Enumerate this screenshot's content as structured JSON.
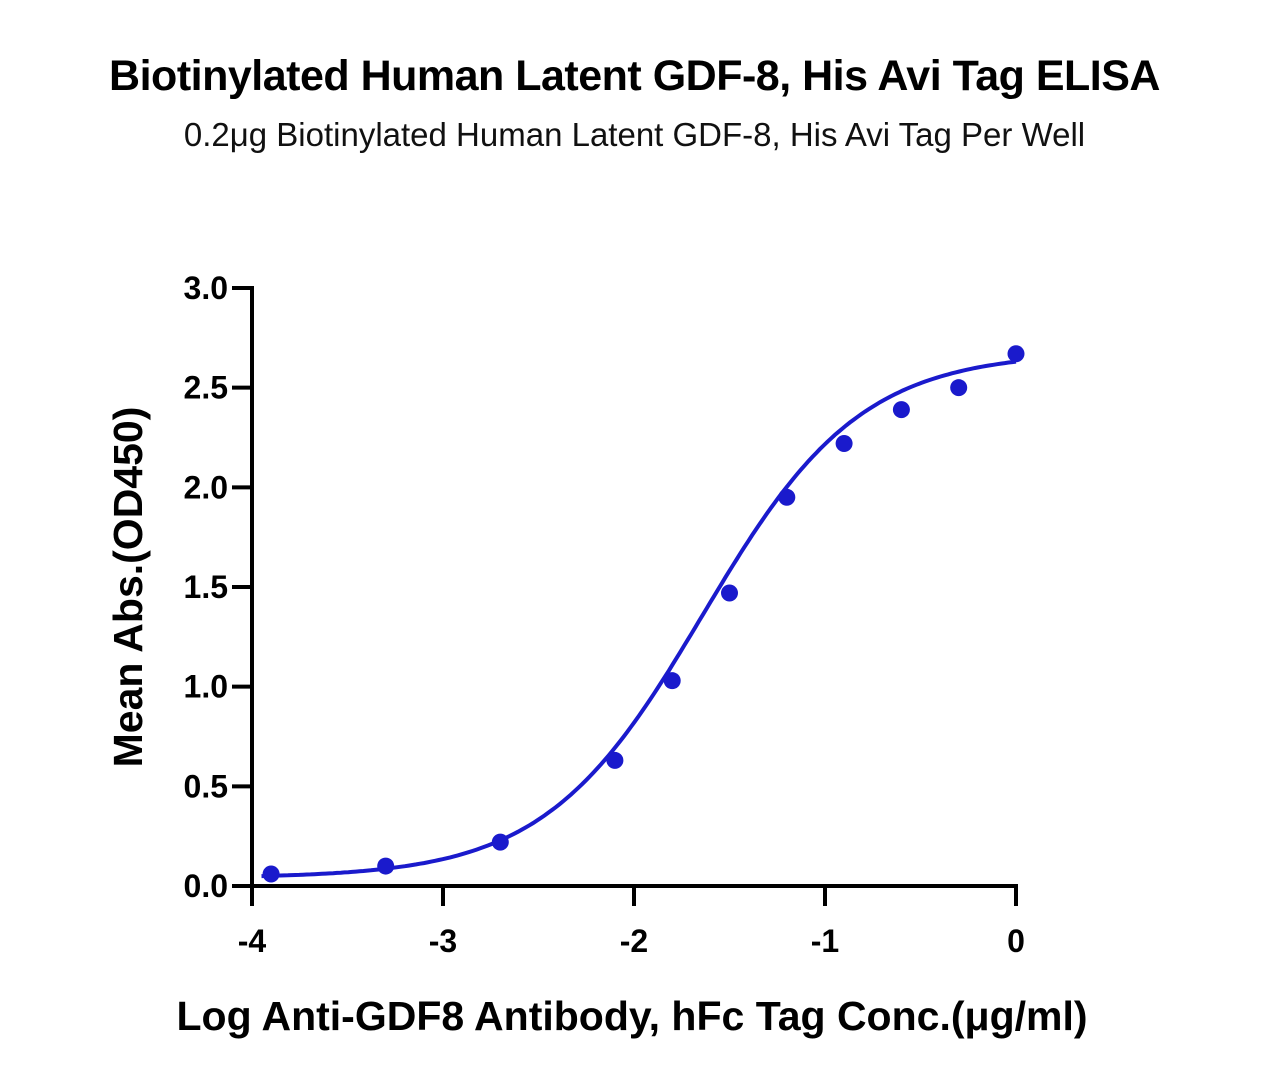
{
  "chart_data": {
    "type": "scatter",
    "title": "Biotinylated Human Latent GDF-8, His Avi Tag ELISA",
    "subtitle": "0.2μg Biotinylated Human Latent GDF-8, His Avi Tag Per Well",
    "xlabel": "Log Anti-GDF8 Antibody, hFc Tag Conc.(μg/ml)",
    "ylabel": "Mean Abs.(OD450)",
    "xlim": [
      -4,
      0
    ],
    "ylim": [
      0,
      3.0
    ],
    "x_ticks": [
      -4,
      -3,
      -2,
      -1,
      0
    ],
    "x_tick_labels": [
      "-4",
      "-3",
      "-2",
      "-1",
      "0"
    ],
    "y_ticks": [
      0,
      0.5,
      1.0,
      1.5,
      2.0,
      2.5,
      3.0
    ],
    "y_tick_labels": [
      "0.0",
      "0.5",
      "1.0",
      "1.5",
      "2.0",
      "2.5",
      "3.0"
    ],
    "grid": false,
    "series": [
      {
        "color": "#1a1acc",
        "x": [
          -3.9,
          -3.3,
          -2.7,
          -2.1,
          -1.8,
          -1.5,
          -1.2,
          -0.9,
          -0.6,
          -0.3,
          0.0
        ],
        "y": [
          0.06,
          0.1,
          0.22,
          0.63,
          1.03,
          1.47,
          1.95,
          2.22,
          2.39,
          2.5,
          2.67
        ]
      }
    ],
    "fit_curve": {
      "model": "4PL",
      "bottom": 0.04,
      "top": 2.68,
      "log_ec50": -1.64,
      "hill": 1.05,
      "x_range": [
        -3.95,
        0.0
      ],
      "color": "#1a1acc"
    }
  }
}
